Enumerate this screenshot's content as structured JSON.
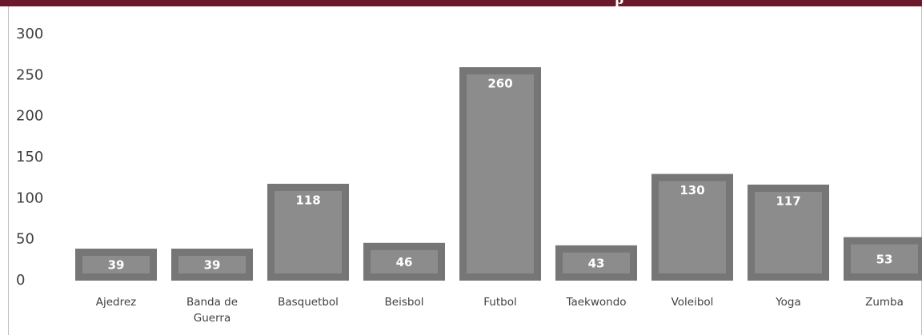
{
  "header": {
    "visible_text": "p"
  },
  "colors": {
    "header_band": "#6b1a2c",
    "bar_outer": "#767676",
    "bar_inner": "#8c8c8c",
    "axis_text": "#404040",
    "data_label": "#ffffff"
  },
  "chart_data": {
    "type": "bar",
    "categories": [
      "Ajedrez",
      "Banda de Guerra",
      "Basquetbol",
      "Beisbol",
      "Futbol",
      "Taekwondo",
      "Voleibol",
      "Yoga",
      "Zumba"
    ],
    "category_lines": [
      [
        "Ajedrez"
      ],
      [
        "Banda de",
        "Guerra"
      ],
      [
        "Basquetbol"
      ],
      [
        "Beisbol"
      ],
      [
        "Futbol"
      ],
      [
        "Taekwondo"
      ],
      [
        "Voleibol"
      ],
      [
        "Yoga"
      ],
      [
        "Zumba"
      ]
    ],
    "values": [
      39,
      39,
      118,
      46,
      260,
      43,
      130,
      117,
      53
    ],
    "data_labels": [
      "39",
      "39",
      "118",
      "46",
      "260",
      "43",
      "130",
      "117",
      "53"
    ],
    "yticks": [
      0,
      50,
      100,
      150,
      200,
      250,
      300
    ],
    "ytick_labels": [
      "0",
      "50",
      "100",
      "150",
      "200",
      "250",
      "300"
    ],
    "ylim": [
      0,
      300
    ],
    "title": "",
    "xlabel": "",
    "ylabel": "",
    "grid": false,
    "legend": "none"
  }
}
